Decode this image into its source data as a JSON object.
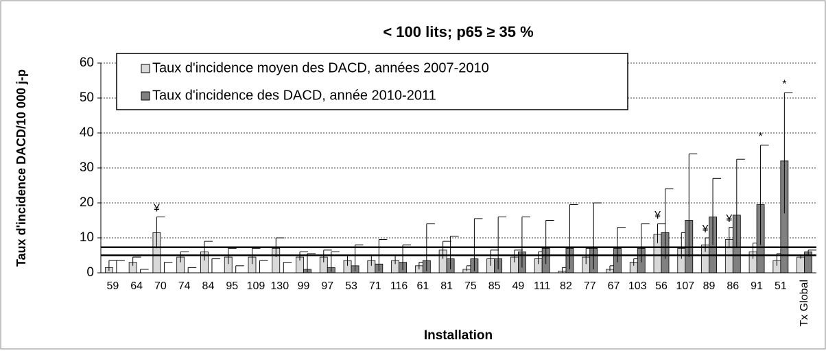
{
  "chart_data": {
    "type": "bar",
    "title": "< 100 lits; p65 ≥ 35 %",
    "x_label": "Installation",
    "y_label": "Taux d'incidence DACD/10 000 j-p",
    "categories": [
      "59",
      "64",
      "70",
      "74",
      "84",
      "95",
      "109",
      "130",
      "99",
      "97",
      "53",
      "71",
      "116",
      "61",
      "81",
      "75",
      "85",
      "49",
      "111",
      "82",
      "77",
      "67",
      "103",
      "56",
      "107",
      "89",
      "86",
      "91",
      "51",
      "Tx Global"
    ],
    "series": [
      {
        "name": "Taux d'incidence moyen des DACD, années 2007-2010",
        "color": "#d9d9d9",
        "values": [
          1.5,
          3,
          11.5,
          4.5,
          6,
          4.5,
          4.5,
          7,
          4.5,
          4.5,
          3.5,
          3.5,
          3.5,
          2,
          6.5,
          1,
          4,
          4.5,
          4,
          0.5,
          4.5,
          1,
          3,
          11,
          7,
          8,
          9.5,
          6,
          3.5,
          4.5
        ],
        "ci_low": [
          0.5,
          2,
          7,
          3,
          3.5,
          2.5,
          2.5,
          4.5,
          3.5,
          3,
          2,
          2,
          2.5,
          1,
          4,
          0.5,
          2,
          3,
          2.5,
          0,
          2.5,
          0.5,
          2,
          8.5,
          4,
          6,
          7,
          4,
          2,
          4
        ],
        "ci_high": [
          3.5,
          4.5,
          16,
          6,
          9,
          7,
          7,
          10,
          6,
          6.5,
          5,
          5,
          5,
          3,
          9,
          2,
          6.5,
          6.5,
          6,
          1.5,
          7,
          2,
          4,
          14,
          11.5,
          10,
          13,
          8.5,
          5.5,
          5
        ]
      },
      {
        "name": "Taux d'incidence des DACD, année 2010-2011",
        "color": "#808080",
        "values": [
          0,
          0,
          0,
          0,
          0,
          0,
          0,
          0,
          1,
          1.5,
          2,
          2.5,
          3,
          3.5,
          4,
          4,
          4,
          6,
          7,
          7,
          7,
          7,
          7,
          11.5,
          15,
          16,
          16.5,
          19.5,
          32,
          6
        ],
        "ci_low": [
          0,
          0,
          0,
          0,
          0,
          0,
          0,
          0,
          0.2,
          0.3,
          0.5,
          0.5,
          0.8,
          0.5,
          1,
          0.5,
          1,
          1.5,
          2.5,
          1,
          1,
          3,
          3,
          4,
          4.5,
          8,
          7.5,
          8,
          17,
          5
        ],
        "ci_high": [
          3.5,
          1,
          3,
          1.5,
          4,
          2,
          3.5,
          3,
          5.5,
          6,
          8,
          9.5,
          8,
          14,
          10.5,
          15.5,
          16,
          16,
          15,
          19.5,
          20,
          13,
          14,
          24,
          34,
          27,
          32.5,
          36.5,
          51.5,
          6.5
        ]
      }
    ],
    "annotations": [
      {
        "text": "¥",
        "category": 2,
        "series": 0
      },
      {
        "text": "¥",
        "category": 23,
        "series": 0
      },
      {
        "text": "¥",
        "category": 25,
        "series": 0
      },
      {
        "text": "¥",
        "category": 26,
        "series": 0
      },
      {
        "text": "*",
        "category": 27,
        "series": 1
      },
      {
        "text": "*",
        "category": 28,
        "series": 1
      }
    ],
    "reference_lines": [
      5,
      7.3
    ],
    "ylim": [
      0,
      60
    ],
    "yticks": [
      0,
      10,
      20,
      30,
      40,
      50,
      60
    ],
    "grid": true
  }
}
